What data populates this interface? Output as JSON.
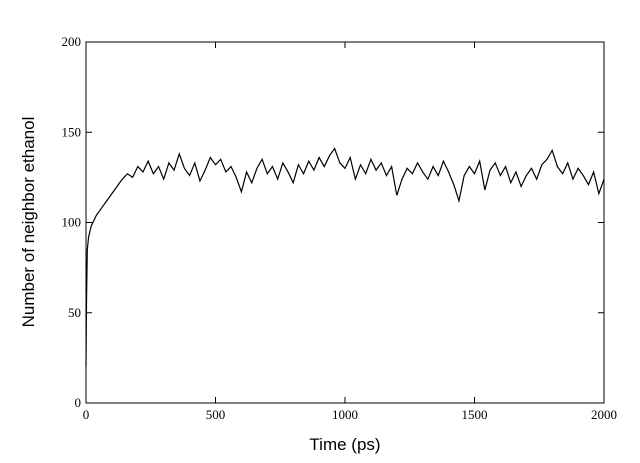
{
  "chart_data": {
    "type": "line",
    "x_label": "Time (ps)",
    "y_label": "Number of neighbor ethanol",
    "x": [
      0,
      2,
      5,
      10,
      20,
      40,
      60,
      80,
      100,
      120,
      140,
      160,
      180,
      200,
      220,
      240,
      260,
      280,
      300,
      320,
      340,
      360,
      380,
      400,
      420,
      440,
      460,
      480,
      500,
      520,
      540,
      560,
      580,
      600,
      620,
      640,
      660,
      680,
      700,
      720,
      740,
      760,
      780,
      800,
      820,
      840,
      860,
      880,
      900,
      920,
      940,
      960,
      980,
      1000,
      1020,
      1040,
      1060,
      1080,
      1100,
      1120,
      1140,
      1160,
      1180,
      1200,
      1220,
      1240,
      1260,
      1280,
      1300,
      1320,
      1340,
      1360,
      1380,
      1400,
      1420,
      1440,
      1460,
      1480,
      1500,
      1520,
      1540,
      1560,
      1580,
      1600,
      1620,
      1640,
      1660,
      1680,
      1700,
      1720,
      1740,
      1760,
      1780,
      1800,
      1820,
      1840,
      1860,
      1880,
      1900,
      1920,
      1940,
      1960,
      1980,
      2000
    ],
    "series": [
      {
        "color": "#000000",
        "values": [
          20,
          57,
          85,
          92,
          98,
          104,
          108,
          112,
          116,
          120,
          124,
          127,
          125,
          131,
          128,
          134,
          127,
          131,
          124,
          133,
          129,
          138,
          130,
          126,
          133,
          123,
          129,
          136,
          132,
          135,
          128,
          131,
          125,
          117,
          128,
          122,
          130,
          135,
          127,
          131,
          124,
          133,
          128,
          122,
          132,
          127,
          134,
          129,
          136,
          131,
          137,
          141,
          133,
          130,
          136,
          124,
          132,
          127,
          135,
          129,
          133,
          126,
          131,
          115,
          124,
          130,
          127,
          133,
          128,
          124,
          131,
          126,
          134,
          128,
          121,
          112,
          126,
          131,
          127,
          134,
          118,
          129,
          133,
          126,
          131,
          122,
          128,
          120,
          126,
          130,
          124,
          132,
          135,
          140,
          131,
          127,
          133,
          124,
          130,
          126,
          121,
          128,
          116,
          124
        ]
      }
    ],
    "xlim": [
      0,
      2000
    ],
    "xticks": [
      0,
      500,
      1000,
      1500,
      2000
    ],
    "ylim": [
      0,
      200
    ],
    "yticks": [
      0,
      50,
      100,
      150,
      200
    ]
  }
}
